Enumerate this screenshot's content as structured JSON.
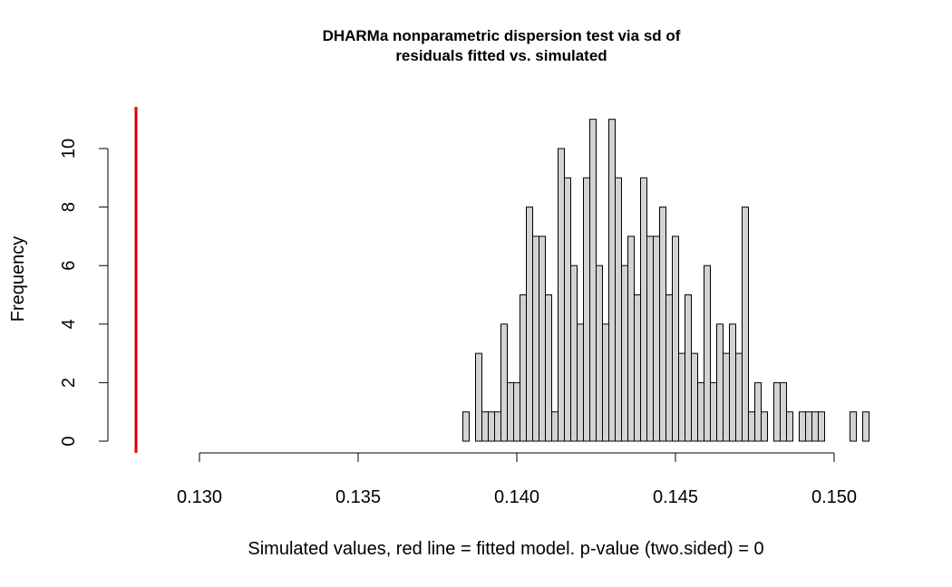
{
  "chart_data": {
    "type": "bar",
    "title_lines": [
      "DHARMa nonparametric dispersion test via sd of",
      "residuals fitted vs. simulated"
    ],
    "xlabel": "Simulated values, red line = fitted model. p-value (two.sided) = 0",
    "ylabel": "Frequency",
    "x_ticks": [
      "0.130",
      "0.135",
      "0.140",
      "0.145",
      "0.150"
    ],
    "y_ticks": [
      "0",
      "2",
      "4",
      "6",
      "8",
      "10"
    ],
    "xlim": [
      0.128,
      0.1512
    ],
    "ylim": [
      0,
      11
    ],
    "bin_start": 0.1383,
    "bin_width": 0.0002,
    "values": [
      1,
      0,
      3,
      1,
      1,
      1,
      4,
      2,
      2,
      5,
      8,
      7,
      7,
      5,
      1,
      10,
      9,
      6,
      4,
      9,
      11,
      6,
      4,
      11,
      9,
      6,
      7,
      5,
      9,
      7,
      7,
      8,
      5,
      7,
      3,
      5,
      3,
      2,
      6,
      2,
      4,
      3,
      4,
      3,
      8,
      1,
      2,
      1,
      0,
      2,
      2,
      1,
      0,
      1,
      1,
      1,
      1,
      0,
      0,
      0,
      0,
      1,
      0,
      1
    ],
    "observed_value": 0.128,
    "observed_color": "#dd0000",
    "bar_fill": "#d3d3d3"
  }
}
